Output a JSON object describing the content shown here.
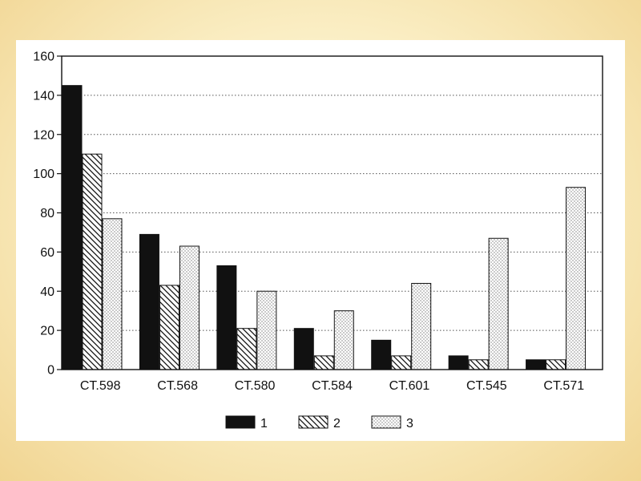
{
  "chart_data": {
    "type": "bar",
    "title": "",
    "xlabel": "",
    "ylabel": "",
    "ylim": [
      0,
      160
    ],
    "yticks": [
      0,
      20,
      40,
      60,
      80,
      100,
      120,
      140,
      160
    ],
    "grid": "horizontal dotted",
    "legend_position": "bottom",
    "categories": [
      "CT.598",
      "CT.568",
      "CT.580",
      "CT.584",
      "CT.601",
      "CT.545",
      "CT.571"
    ],
    "series": [
      {
        "name": "1",
        "values": [
          145,
          69,
          53,
          21,
          15,
          7,
          5
        ],
        "fill": "solid-black"
      },
      {
        "name": "2",
        "values": [
          110,
          43,
          21,
          7,
          7,
          5,
          5
        ],
        "fill": "diagonal-hatch"
      },
      {
        "name": "3",
        "values": [
          77,
          63,
          40,
          30,
          44,
          67,
          93
        ],
        "fill": "dotted"
      }
    ]
  },
  "colors": {
    "background_center": "#fffbe6",
    "background_edge": "#f1d592",
    "panel": "#ffffff",
    "ink": "#111111"
  }
}
